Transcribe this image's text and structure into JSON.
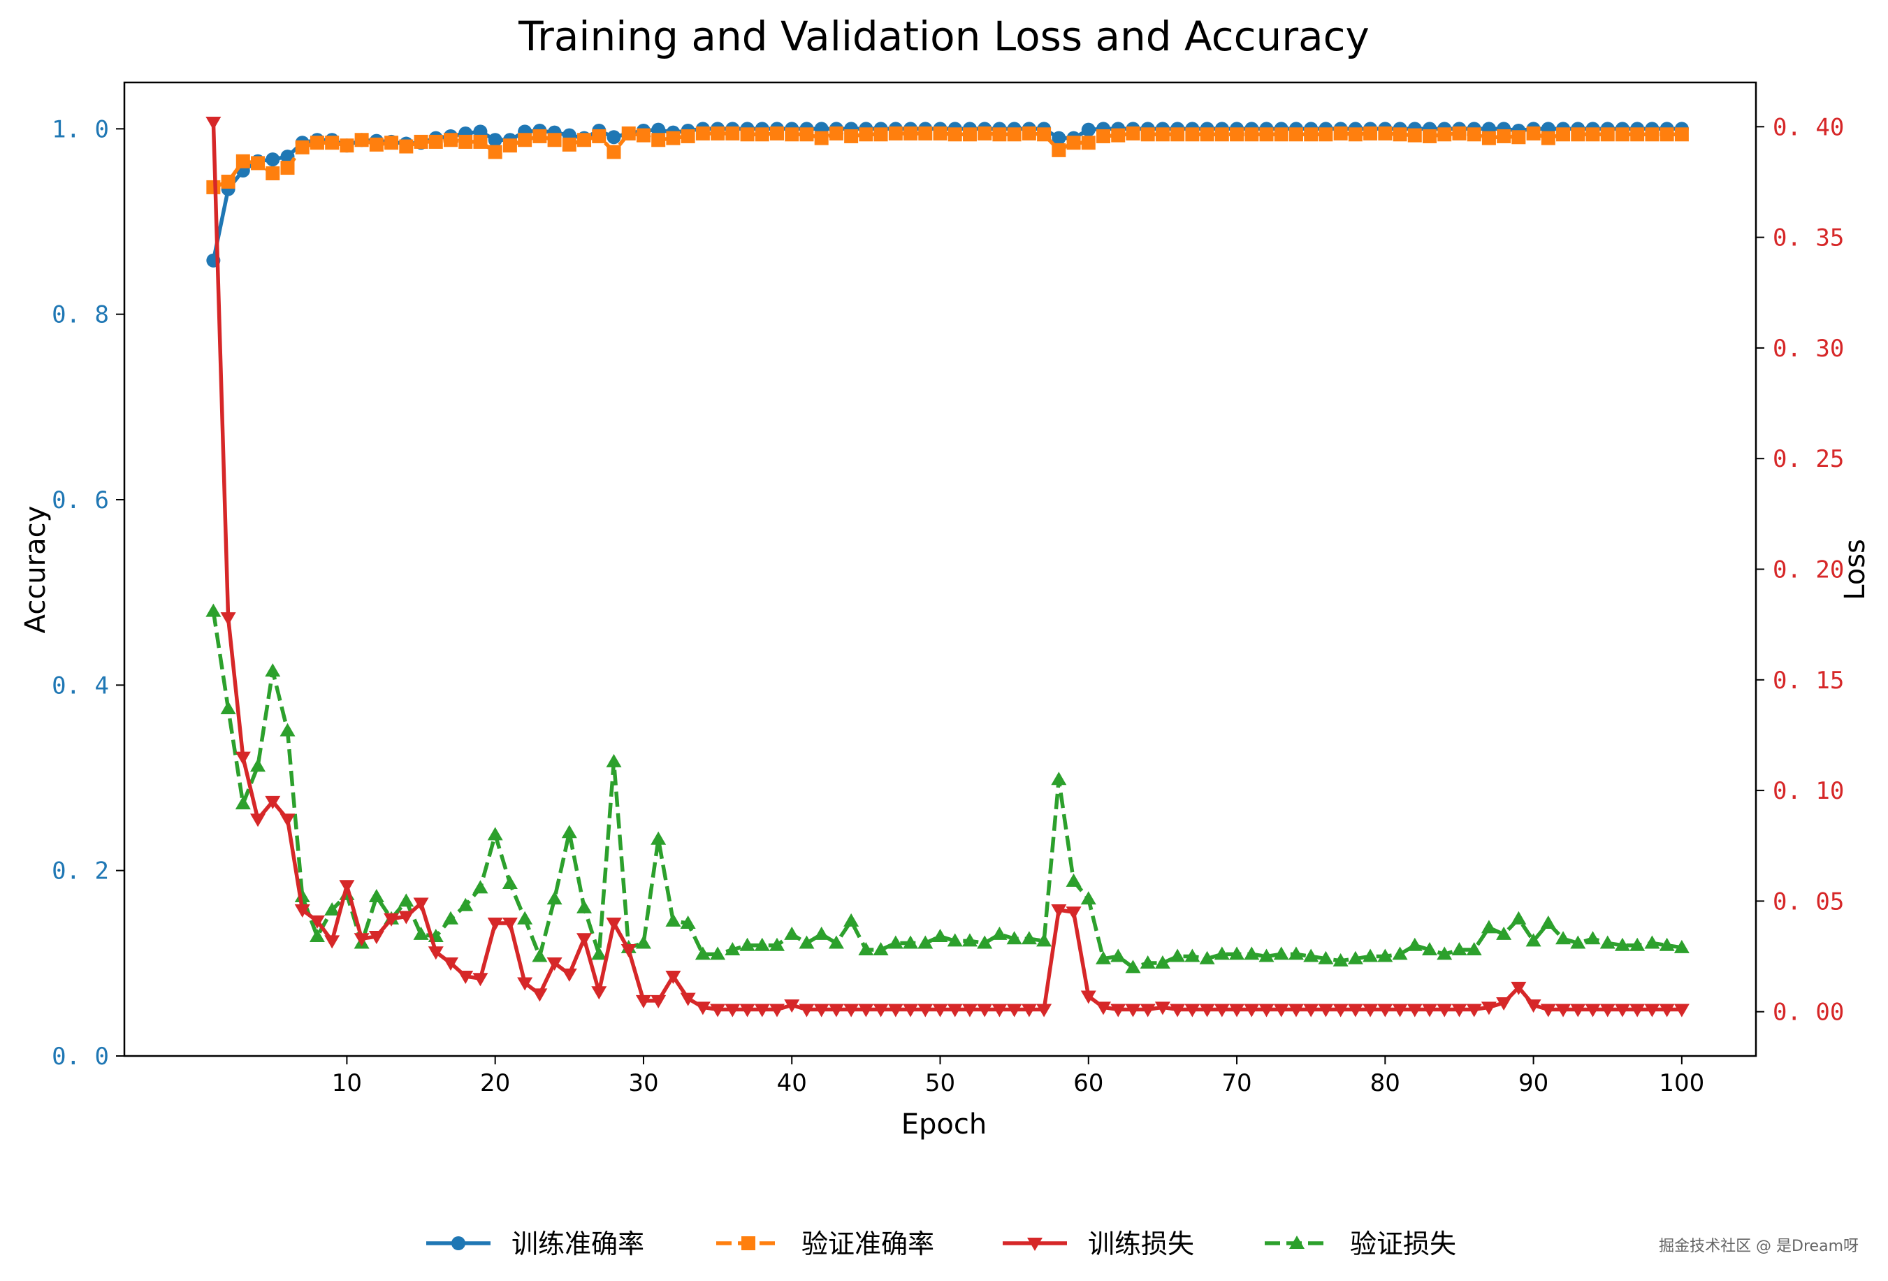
{
  "chart_data": {
    "type": "line",
    "title": "Training and Validation Loss and Accuracy",
    "xlabel": "Epoch",
    "ylabel_left": "Accuracy",
    "ylabel_right": "Loss",
    "xlim": [
      -5,
      105
    ],
    "ylim_left": [
      0,
      1.05
    ],
    "ylim_right": [
      -0.02,
      0.42
    ],
    "x_ticks": [
      "10",
      "20",
      "30",
      "40",
      "50",
      "60",
      "70",
      "80",
      "90",
      "100"
    ],
    "y_ticks_left": [
      "0. 0",
      "0. 2",
      "0. 4",
      "0. 6",
      "0. 8",
      "1. 0"
    ],
    "y_ticks_right": [
      "0. 00",
      "0. 05",
      "0. 10",
      "0. 15",
      "0. 20",
      "0. 25",
      "0. 30",
      "0. 35",
      "0. 40"
    ],
    "colors": {
      "left_axis": "#1f77b4",
      "right_axis": "#d62728"
    },
    "legend_position": "bottom-center",
    "x": [
      1,
      2,
      3,
      4,
      5,
      6,
      7,
      8,
      9,
      10,
      11,
      12,
      13,
      14,
      15,
      16,
      17,
      18,
      19,
      20,
      21,
      22,
      23,
      24,
      25,
      26,
      27,
      28,
      29,
      30,
      31,
      32,
      33,
      34,
      35,
      36,
      37,
      38,
      39,
      40,
      41,
      42,
      43,
      44,
      45,
      46,
      47,
      48,
      49,
      50,
      51,
      52,
      53,
      54,
      55,
      56,
      57,
      58,
      59,
      60,
      61,
      62,
      63,
      64,
      65,
      66,
      67,
      68,
      69,
      70,
      71,
      72,
      73,
      74,
      75,
      76,
      77,
      78,
      79,
      80,
      81,
      82,
      83,
      84,
      85,
      86,
      87,
      88,
      89,
      90,
      91,
      92,
      93,
      94,
      95,
      96,
      97,
      98,
      99,
      100
    ],
    "series": [
      {
        "name": "训练准确率",
        "axis": "left",
        "color": "#1f77b4",
        "marker": "circle",
        "dash": "solid",
        "values": [
          0.858,
          0.935,
          0.955,
          0.965,
          0.967,
          0.97,
          0.985,
          0.988,
          0.988,
          0.982,
          0.988,
          0.987,
          0.986,
          0.984,
          0.985,
          0.99,
          0.992,
          0.995,
          0.997,
          0.988,
          0.988,
          0.997,
          0.998,
          0.996,
          0.993,
          0.99,
          0.998,
          0.991,
          0.995,
          0.998,
          0.999,
          0.996,
          0.998,
          1.0,
          1.0,
          1.0,
          1.0,
          1.0,
          1.0,
          1.0,
          1.0,
          1.0,
          1.0,
          1.0,
          1.0,
          1.0,
          1.0,
          1.0,
          1.0,
          1.0,
          1.0,
          1.0,
          1.0,
          1.0,
          1.0,
          1.0,
          1.0,
          0.99,
          0.99,
          0.999,
          1.0,
          1.0,
          1.0,
          1.0,
          1.0,
          1.0,
          1.0,
          1.0,
          1.0,
          1.0,
          1.0,
          1.0,
          1.0,
          1.0,
          1.0,
          1.0,
          1.0,
          1.0,
          1.0,
          1.0,
          1.0,
          1.0,
          1.0,
          1.0,
          1.0,
          1.0,
          1.0,
          1.0,
          0.998,
          1.0,
          1.0,
          1.0,
          1.0,
          1.0,
          1.0,
          1.0,
          1.0,
          1.0,
          1.0,
          1.0
        ]
      },
      {
        "name": "验证准确率",
        "axis": "left",
        "color": "#ff7f0e",
        "marker": "square",
        "dash": "dashed",
        "values": [
          0.937,
          0.943,
          0.965,
          0.963,
          0.952,
          0.958,
          0.98,
          0.985,
          0.985,
          0.982,
          0.988,
          0.983,
          0.985,
          0.981,
          0.986,
          0.986,
          0.988,
          0.986,
          0.986,
          0.975,
          0.982,
          0.988,
          0.992,
          0.988,
          0.983,
          0.988,
          0.992,
          0.975,
          0.995,
          0.993,
          0.988,
          0.99,
          0.992,
          0.995,
          0.995,
          0.995,
          0.994,
          0.994,
          0.995,
          0.994,
          0.994,
          0.99,
          0.995,
          0.992,
          0.994,
          0.994,
          0.995,
          0.995,
          0.995,
          0.995,
          0.994,
          0.994,
          0.995,
          0.994,
          0.994,
          0.995,
          0.994,
          0.977,
          0.985,
          0.985,
          0.992,
          0.993,
          0.995,
          0.994,
          0.994,
          0.994,
          0.994,
          0.994,
          0.994,
          0.994,
          0.994,
          0.994,
          0.994,
          0.994,
          0.994,
          0.994,
          0.995,
          0.994,
          0.995,
          0.995,
          0.994,
          0.993,
          0.992,
          0.994,
          0.995,
          0.994,
          0.99,
          0.992,
          0.991,
          0.995,
          0.99,
          0.994,
          0.994,
          0.994,
          0.994,
          0.994,
          0.994,
          0.994,
          0.994,
          0.994
        ]
      },
      {
        "name": "训练损失",
        "axis": "right",
        "color": "#d62728",
        "marker": "triangle-down",
        "dash": "solid",
        "values": [
          0.402,
          0.178,
          0.115,
          0.087,
          0.095,
          0.087,
          0.046,
          0.041,
          0.032,
          0.057,
          0.033,
          0.034,
          0.042,
          0.043,
          0.049,
          0.027,
          0.022,
          0.016,
          0.015,
          0.04,
          0.04,
          0.013,
          0.008,
          0.022,
          0.017,
          0.033,
          0.009,
          0.04,
          0.028,
          0.005,
          0.005,
          0.016,
          0.006,
          0.002,
          0.001,
          0.001,
          0.001,
          0.001,
          0.001,
          0.003,
          0.001,
          0.001,
          0.001,
          0.001,
          0.001,
          0.001,
          0.001,
          0.001,
          0.001,
          0.001,
          0.001,
          0.001,
          0.001,
          0.001,
          0.001,
          0.001,
          0.001,
          0.046,
          0.045,
          0.007,
          0.002,
          0.001,
          0.001,
          0.001,
          0.002,
          0.001,
          0.001,
          0.001,
          0.001,
          0.001,
          0.001,
          0.001,
          0.001,
          0.001,
          0.001,
          0.001,
          0.001,
          0.001,
          0.001,
          0.001,
          0.001,
          0.001,
          0.001,
          0.001,
          0.001,
          0.001,
          0.002,
          0.004,
          0.011,
          0.003,
          0.001,
          0.001,
          0.001,
          0.001,
          0.001,
          0.001,
          0.001,
          0.001,
          0.001,
          0.001
        ]
      },
      {
        "name": "验证损失",
        "axis": "right",
        "color": "#2ca02c",
        "marker": "triangle-up",
        "dash": "dashed",
        "values": [
          0.181,
          0.137,
          0.094,
          0.111,
          0.154,
          0.127,
          0.052,
          0.034,
          0.046,
          0.053,
          0.031,
          0.052,
          0.042,
          0.05,
          0.035,
          0.034,
          0.042,
          0.048,
          0.056,
          0.08,
          0.058,
          0.042,
          0.025,
          0.051,
          0.081,
          0.047,
          0.026,
          0.113,
          0.029,
          0.031,
          0.078,
          0.041,
          0.04,
          0.026,
          0.026,
          0.028,
          0.03,
          0.03,
          0.03,
          0.035,
          0.031,
          0.035,
          0.031,
          0.041,
          0.028,
          0.028,
          0.031,
          0.031,
          0.031,
          0.034,
          0.032,
          0.032,
          0.031,
          0.035,
          0.033,
          0.033,
          0.032,
          0.105,
          0.059,
          0.051,
          0.024,
          0.025,
          0.02,
          0.022,
          0.022,
          0.025,
          0.025,
          0.024,
          0.026,
          0.026,
          0.026,
          0.025,
          0.026,
          0.026,
          0.025,
          0.024,
          0.023,
          0.024,
          0.025,
          0.025,
          0.026,
          0.03,
          0.028,
          0.026,
          0.028,
          0.028,
          0.038,
          0.035,
          0.042,
          0.032,
          0.04,
          0.033,
          0.031,
          0.033,
          0.031,
          0.03,
          0.03,
          0.031,
          0.03,
          0.029
        ]
      }
    ]
  },
  "watermark": "掘金技术社区 @ 是Dream呀"
}
